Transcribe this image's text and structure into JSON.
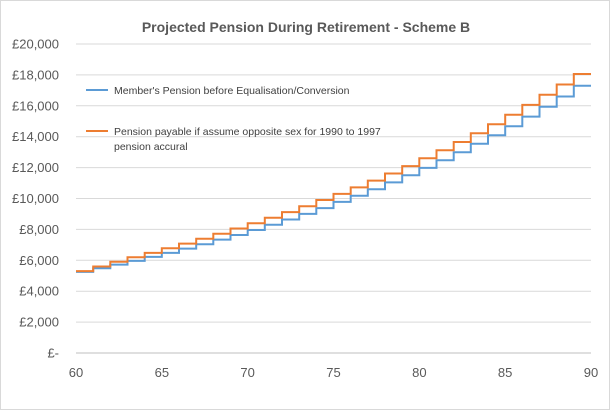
{
  "chart_data": {
    "type": "line",
    "title": "Projected Pension During Retirement - Scheme B",
    "xlabel": "",
    "ylabel": "",
    "xlim": [
      60,
      90
    ],
    "ylim": [
      0,
      20000
    ],
    "x_ticks": [
      60,
      65,
      70,
      75,
      80,
      85,
      90
    ],
    "x_tick_labels": [
      "60",
      "65",
      "70",
      "75",
      "80",
      "85",
      "90"
    ],
    "y_ticks": [
      0,
      2000,
      4000,
      6000,
      8000,
      10000,
      12000,
      14000,
      16000,
      18000,
      20000
    ],
    "y_tick_labels": [
      "£-",
      "£2,000",
      "£4,000",
      "£6,000",
      "£8,000",
      "£10,000",
      "£12,000",
      "£14,000",
      "£16,000",
      "£18,000",
      "£20,000"
    ],
    "grid": "horizontal",
    "legend_position": "top-left",
    "step": true,
    "x": [
      60,
      61,
      62,
      63,
      64,
      65,
      66,
      67,
      68,
      69,
      70,
      71,
      72,
      73,
      74,
      75,
      76,
      77,
      78,
      79,
      80,
      81,
      82,
      83,
      84,
      85,
      86,
      87,
      88,
      89
    ],
    "x_end": 90,
    "series": [
      {
        "name": "Member's Pension before Equalisation/Conversion",
        "color": "#5b9bd5",
        "values": [
          5250,
          5480,
          5720,
          5960,
          6220,
          6480,
          6760,
          7040,
          7340,
          7640,
          7960,
          8300,
          8640,
          9000,
          9380,
          9780,
          10180,
          10600,
          11040,
          11500,
          11980,
          12480,
          13000,
          13540,
          14100,
          14680,
          15300,
          15940,
          16600,
          17300
        ]
      },
      {
        "name": "Pension payable if assume opposite sex for 1990 to 1997 pension accural",
        "color": "#ed7d31",
        "values": [
          5300,
          5600,
          5900,
          6200,
          6480,
          6780,
          7080,
          7400,
          7720,
          8060,
          8400,
          8760,
          9120,
          9500,
          9900,
          10300,
          10720,
          11160,
          11620,
          12100,
          12600,
          13120,
          13660,
          14220,
          14800,
          15420,
          16060,
          16720,
          17380,
          18060
        ]
      }
    ]
  }
}
